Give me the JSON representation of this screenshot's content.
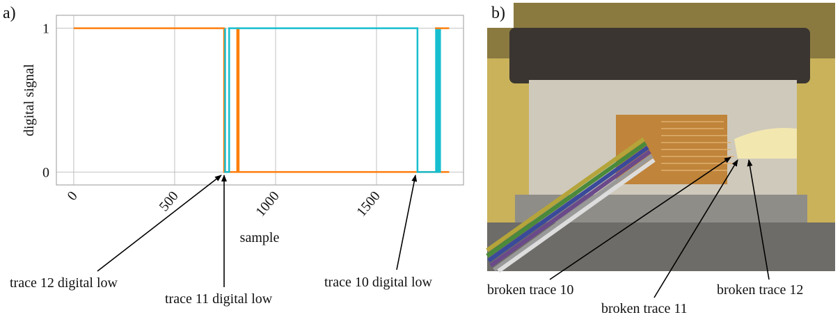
{
  "chart_data": {
    "type": "line",
    "panel_label": "a)",
    "xlabel": "sample",
    "ylabel": "digital signal",
    "xlim": [
      -86,
      1931
    ],
    "ylim": [
      -0.09,
      1.09
    ],
    "xticks": [
      0,
      500,
      1000,
      1500
    ],
    "yticks": [
      0,
      1
    ],
    "grid": true,
    "series": [
      {
        "color": "#ff7f0e",
        "x": [
          0,
          745,
          745,
          810,
          810,
          817,
          817,
          1860
        ],
        "values": [
          1,
          1,
          0,
          0,
          1,
          1,
          0,
          0
        ]
      },
      {
        "color": "#17becf",
        "x": [
          750,
          750,
          770,
          770,
          1703,
          1703,
          1795,
          1795,
          1800,
          1800,
          1805,
          1805,
          1810,
          1810,
          1815,
          1815
        ],
        "values": [
          1,
          0,
          0,
          1,
          1,
          0,
          0,
          1,
          1,
          0,
          0,
          1,
          1,
          0,
          0,
          1
        ]
      },
      {
        "color": "#ff7f0e",
        "x": [
          1790,
          1860
        ],
        "values": [
          1,
          1
        ]
      }
    ],
    "annotations": [
      "trace 12 digital low",
      "trace 11 digital low",
      "trace 10 digital low"
    ]
  },
  "photo": {
    "panel_label": "b)",
    "annotations": [
      "broken trace 10",
      "broken trace 11",
      "broken trace 12"
    ]
  }
}
